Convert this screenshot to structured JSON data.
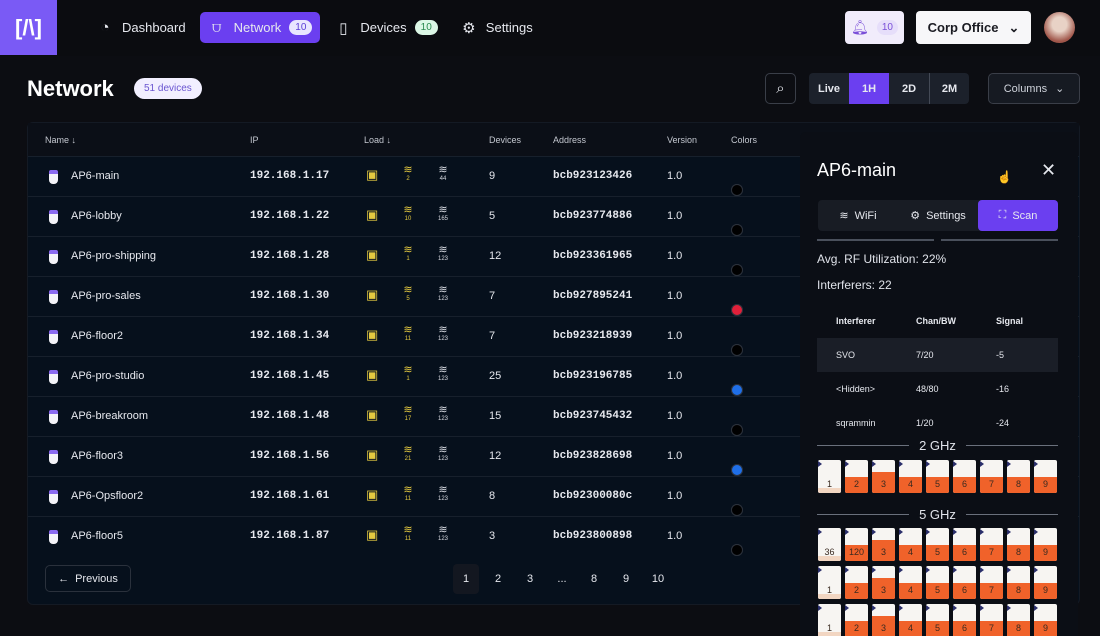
{
  "nav": {
    "logo": "[/\\]",
    "items": [
      {
        "label": "Dashboard",
        "icon": "gauge-icon"
      },
      {
        "label": "Network",
        "icon": "router-icon",
        "badge": "10",
        "active": true
      },
      {
        "label": "Devices",
        "icon": "devices-icon",
        "badge": "10"
      },
      {
        "label": "Settings",
        "icon": "gear-icon"
      }
    ],
    "notifications": "10",
    "site": "Corp Office"
  },
  "page": {
    "title": "Network",
    "count": "51 devices",
    "ranges": [
      "Live",
      "1H",
      "2D",
      "2M"
    ],
    "active_range": "1H",
    "columns": "Columns"
  },
  "table": {
    "headers": [
      "Name ↓",
      "IP",
      "Load ↓",
      "Devices",
      "Address",
      "Version",
      "Colors"
    ],
    "rows": [
      {
        "name": "AP6-main",
        "ip": "192.168.1.17",
        "w2": "2",
        "w5": "44",
        "devices": "9",
        "address": "bcb923123426",
        "version": "1.0",
        "colors": [
          "#d6338f",
          "#ffffff",
          "#000000"
        ]
      },
      {
        "name": "AP6-lobby",
        "ip": "192.168.1.22",
        "w2": "10",
        "w5": "165",
        "devices": "5",
        "address": "bcb923774886",
        "version": "1.0",
        "colors": [
          "#d6338f",
          "#e0362a",
          "#000000"
        ]
      },
      {
        "name": "AP6-pro-shipping",
        "ip": "192.168.1.28",
        "w2": "1",
        "w5": "123",
        "devices": "12",
        "address": "bcb923361965",
        "version": "1.0",
        "colors": [
          "#d6338f",
          "#e0362a",
          "#000000"
        ]
      },
      {
        "name": "AP6-pro-sales",
        "ip": "192.168.1.30",
        "w2": "5",
        "w5": "123",
        "devices": "7",
        "address": "bcb927895241",
        "version": "1.0",
        "colors": [
          "#d6338f",
          "#000000",
          "#e0203a"
        ]
      },
      {
        "name": "AP6-floor2",
        "ip": "192.168.1.34",
        "w2": "11",
        "w5": "123",
        "devices": "7",
        "address": "bcb923218939",
        "version": "1.0",
        "colors": [
          "#d6338f",
          "#1f6fe8",
          "#000000"
        ]
      },
      {
        "name": "AP6-pro-studio",
        "ip": "192.168.1.45",
        "w2": "1",
        "w5": "123",
        "devices": "25",
        "address": "bcb923196785",
        "version": "1.0",
        "colors": [
          "#d6338f",
          "#000000",
          "#1f6fe8"
        ]
      },
      {
        "name": "AP6-breakroom",
        "ip": "192.168.1.48",
        "w2": "17",
        "w5": "123",
        "devices": "15",
        "address": "bcb923745432",
        "version": "1.0",
        "colors": [
          "#d6338f",
          "#000000",
          "#000000"
        ]
      },
      {
        "name": "AP6-floor3",
        "ip": "192.168.1.56",
        "w2": "21",
        "w5": "123",
        "devices": "12",
        "address": "bcb923828698",
        "version": "1.0",
        "colors": [
          "#d6338f",
          "#000000",
          "#1f6fe8"
        ]
      },
      {
        "name": "AP6-Opsfloor2",
        "ip": "192.168.1.61",
        "w2": "11",
        "w5": "123",
        "devices": "8",
        "address": "bcb92300080c",
        "version": "1.0",
        "colors": [
          "#d6338f",
          "#000000",
          "#000000"
        ]
      },
      {
        "name": "AP6-floor5",
        "ip": "192.168.1.87",
        "w2": "11",
        "w5": "123",
        "devices": "3",
        "address": "bcb923800898",
        "version": "1.0",
        "colors": [
          "#d6338f",
          "#1f6fe8",
          "#000000"
        ]
      }
    ]
  },
  "pagination": {
    "previous": "Previous",
    "pages": [
      "1",
      "2",
      "3",
      "...",
      "8",
      "9",
      "10"
    ],
    "current": "1"
  },
  "panel": {
    "title": "AP6-main",
    "tabs": [
      "WiFi",
      "Settings",
      "Scan"
    ],
    "active_tab": "Scan",
    "rf": "Avg. RF Utilization: 22%",
    "interferers": "Interferers: 22",
    "interferer_headers": [
      "Interferer",
      "Chan/BW",
      "Signal"
    ],
    "interferer_rows": [
      [
        "SVO",
        "7/20",
        "-5"
      ],
      [
        "<Hidden>",
        "48/80",
        "-16"
      ],
      [
        "sqrammin",
        "1/20",
        "-24"
      ]
    ],
    "band_2": "2 GHz",
    "band_5": "5 GHz",
    "channels_2": [
      {
        "ch": "1",
        "util": 15
      },
      {
        "ch": "2",
        "util": 50
      },
      {
        "ch": "3",
        "util": 65
      },
      {
        "ch": "4",
        "util": 50
      },
      {
        "ch": "5",
        "util": 50
      },
      {
        "ch": "6",
        "util": 50
      },
      {
        "ch": "7",
        "util": 50
      },
      {
        "ch": "8",
        "util": 50
      },
      {
        "ch": "9",
        "util": 50
      }
    ],
    "channels_5": [
      [
        {
          "ch": "36",
          "util": 15
        },
        {
          "ch": "120",
          "util": 50
        },
        {
          "ch": "3",
          "util": 65
        },
        {
          "ch": "4",
          "util": 50
        },
        {
          "ch": "5",
          "util": 50
        },
        {
          "ch": "6",
          "util": 50
        },
        {
          "ch": "7",
          "util": 50
        },
        {
          "ch": "8",
          "util": 50
        },
        {
          "ch": "9",
          "util": 50
        }
      ],
      [
        {
          "ch": "1",
          "util": 15
        },
        {
          "ch": "2",
          "util": 50
        },
        {
          "ch": "3",
          "util": 65
        },
        {
          "ch": "4",
          "util": 50
        },
        {
          "ch": "5",
          "util": 50
        },
        {
          "ch": "6",
          "util": 50
        },
        {
          "ch": "7",
          "util": 50
        },
        {
          "ch": "8",
          "util": 50
        },
        {
          "ch": "9",
          "util": 50
        }
      ],
      [
        {
          "ch": "1",
          "util": 15
        },
        {
          "ch": "2",
          "util": 50
        },
        {
          "ch": "3",
          "util": 65
        },
        {
          "ch": "4",
          "util": 50
        },
        {
          "ch": "5",
          "util": 50
        },
        {
          "ch": "6",
          "util": 50
        },
        {
          "ch": "7",
          "util": 50
        },
        {
          "ch": "8",
          "util": 50
        },
        {
          "ch": "9",
          "util": 50
        }
      ]
    ]
  },
  "colors": {
    "accent": "#6b3ff0",
    "logo": "#7a5af5",
    "channel_fill": "#f0622a",
    "load_icon": "#e4c940"
  }
}
